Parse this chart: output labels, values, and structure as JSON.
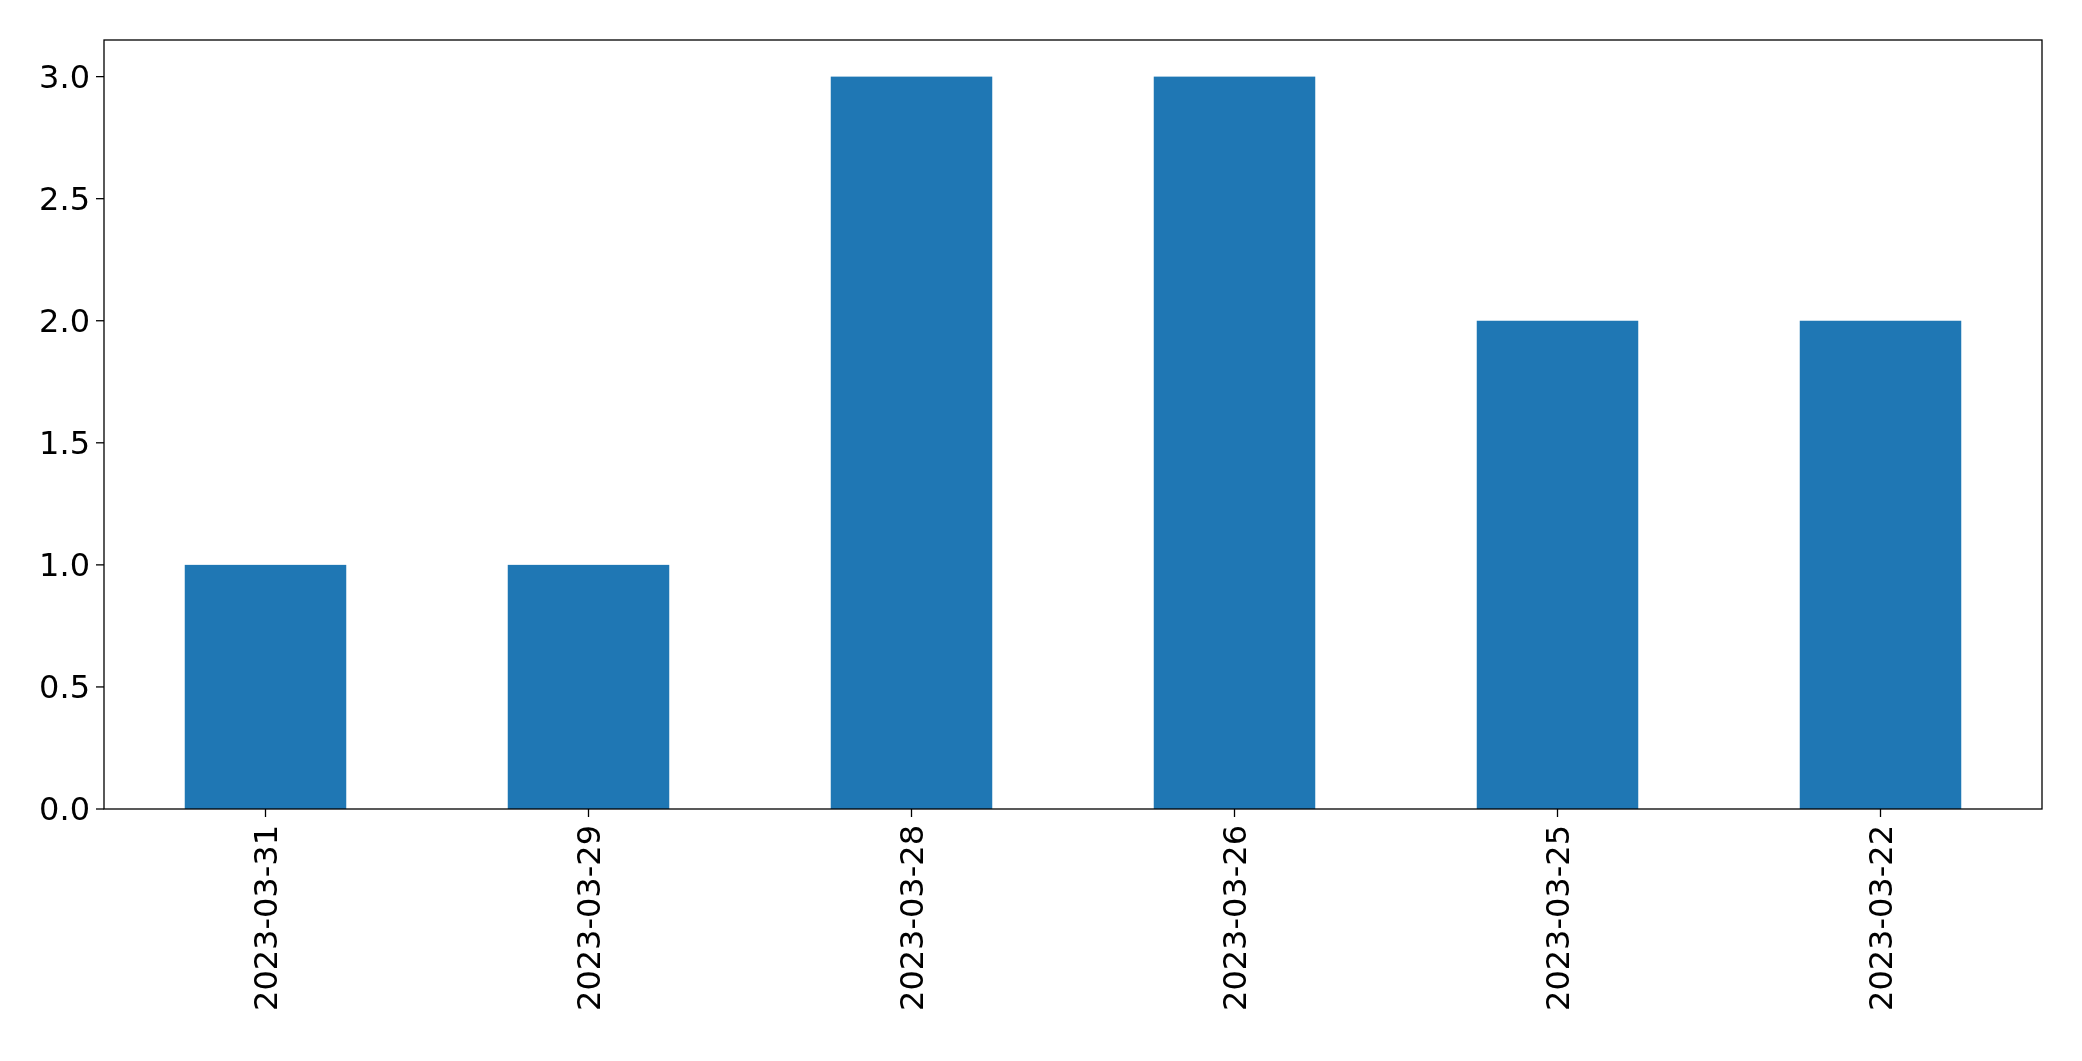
{
  "chart_data": {
    "type": "bar",
    "categories": [
      "2023-03-31",
      "2023-03-29",
      "2023-03-28",
      "2023-03-26",
      "2023-03-25",
      "2023-03-22"
    ],
    "values": [
      1,
      1,
      3,
      3,
      2,
      2
    ],
    "color": "#1f77b4",
    "ylim": [
      0,
      3.15
    ],
    "yticks": [
      {
        "value": 0,
        "label": "0.0"
      },
      {
        "value": 0.5,
        "label": "0.5"
      },
      {
        "value": 1,
        "label": "1.0"
      },
      {
        "value": 1.5,
        "label": "1.5"
      },
      {
        "value": 2,
        "label": "2.0"
      },
      {
        "value": 2.5,
        "label": "2.5"
      },
      {
        "value": 3,
        "label": "3.0"
      }
    ],
    "grid": false
  }
}
